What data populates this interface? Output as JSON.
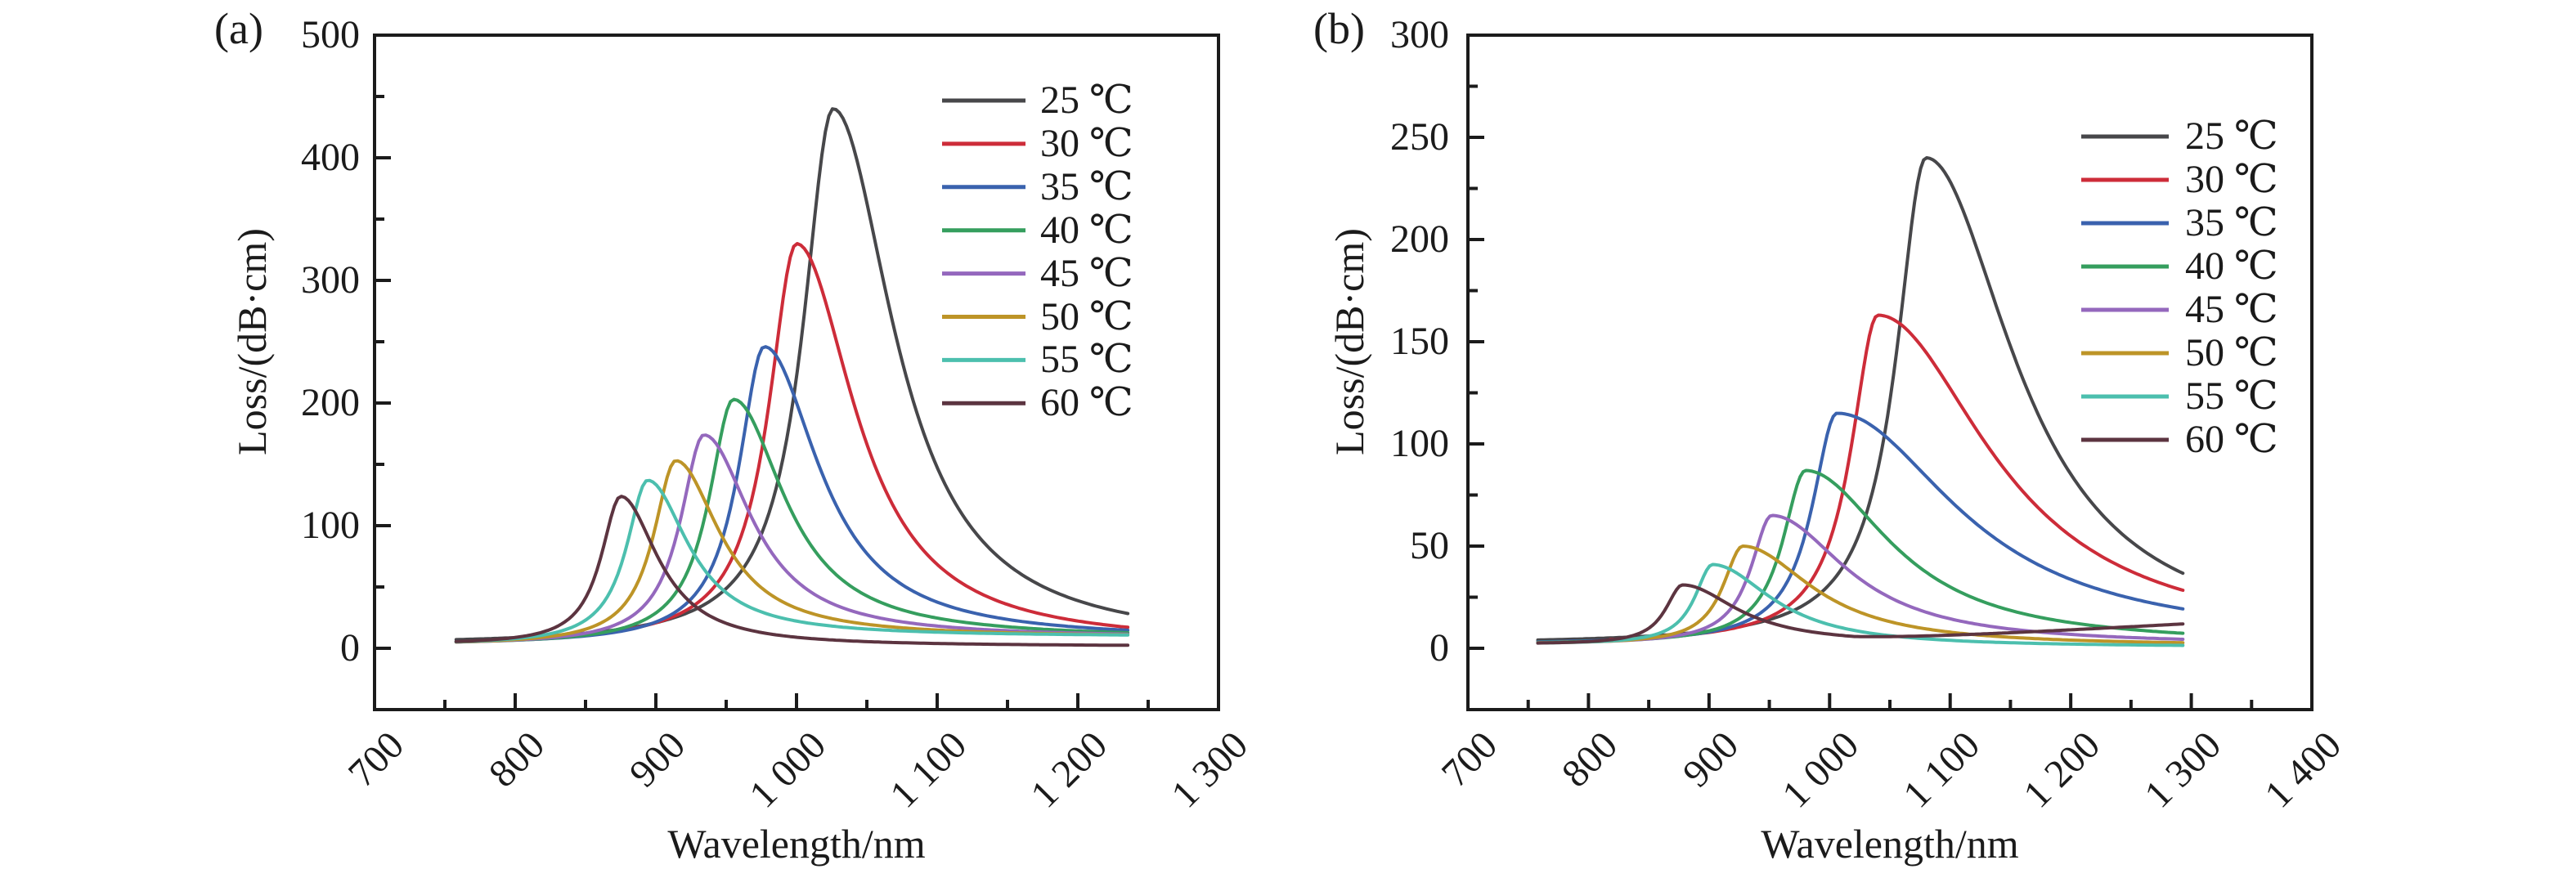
{
  "figure": {
    "background_color": "#ffffff",
    "axis_color": "#1b1b1b",
    "temperature_unit": "℃"
  },
  "chart_data": {
    "type": "line",
    "description": "Loss spectra versus wavelength at temperatures 25-60 ℃, two panels",
    "panels": [
      {
        "panel_label": "(a)",
        "x_label": "Wavelength/nm",
        "y_label": "Loss/(dB·cm)",
        "x_range": [
          700,
          1300
        ],
        "y_range": [
          -50,
          500
        ],
        "x_minor_step": 50,
        "y_minor_step": 50,
        "grid": false,
        "legend_position": "upper-right-inside",
        "x_ticks": [
          {
            "value": 700,
            "label": "700"
          },
          {
            "value": 800,
            "label": "800"
          },
          {
            "value": 900,
            "label": "900"
          },
          {
            "value": 1000,
            "label": "1 000"
          },
          {
            "value": 1100,
            "label": "1 100"
          },
          {
            "value": 1200,
            "label": "1 200"
          },
          {
            "value": 1300,
            "label": "1 300"
          }
        ],
        "y_ticks": [
          {
            "value": 0,
            "label": "0"
          },
          {
            "value": 100,
            "label": "100"
          },
          {
            "value": 200,
            "label": "200"
          },
          {
            "value": 300,
            "label": "300"
          },
          {
            "value": 400,
            "label": "400"
          },
          {
            "value": 500,
            "label": "500"
          }
        ],
        "series": [
          {
            "label": "25 ℃",
            "temperature_c": 25,
            "color": "#47474a",
            "peak": {
              "wavelength_nm": 1026,
              "loss_db_cm": 440
            },
            "lorentz": {
              "width_left_nm": 26,
              "width_right_nm": 52
            },
            "baseline": {
              "left": 3,
              "right": 3
            },
            "x_start": 758,
            "x_end": 1236
          },
          {
            "label": "30 ℃",
            "temperature_c": 30,
            "color": "#cd2c39",
            "peak": {
              "wavelength_nm": 1000,
              "loss_db_cm": 330
            },
            "lorentz": {
              "width_left_nm": 24,
              "width_right_nm": 50
            },
            "baseline": {
              "left": 3,
              "right": 3
            },
            "x_start": 818,
            "x_end": 1236
          },
          {
            "label": "35 ℃",
            "temperature_c": 35,
            "color": "#3a62ae",
            "peak": {
              "wavelength_nm": 977,
              "loss_db_cm": 246
            },
            "lorentz": {
              "width_left_nm": 22,
              "width_right_nm": 47
            },
            "baseline": {
              "left": 3,
              "right": 7
            },
            "x_start": 758,
            "x_end": 1236
          },
          {
            "label": "40 ℃",
            "temperature_c": 40,
            "color": "#359e5e",
            "peak": {
              "wavelength_nm": 955,
              "loss_db_cm": 203
            },
            "lorentz": {
              "width_left_nm": 21,
              "width_right_nm": 44
            },
            "baseline": {
              "left": 3,
              "right": 8
            },
            "x_start": 758,
            "x_end": 1236
          },
          {
            "label": "45 ℃",
            "temperature_c": 45,
            "color": "#9468bd",
            "peak": {
              "wavelength_nm": 934,
              "loss_db_cm": 174
            },
            "lorentz": {
              "width_left_nm": 20,
              "width_right_nm": 41
            },
            "baseline": {
              "left": 3,
              "right": 8.5
            },
            "x_start": 758,
            "x_end": 1236
          },
          {
            "label": "50 ℃",
            "temperature_c": 50,
            "color": "#bd9427",
            "peak": {
              "wavelength_nm": 914,
              "loss_db_cm": 153
            },
            "lorentz": {
              "width_left_nm": 19,
              "width_right_nm": 38
            },
            "baseline": {
              "left": 3,
              "right": 9
            },
            "x_start": 758,
            "x_end": 1236
          },
          {
            "label": "55 ℃",
            "temperature_c": 55,
            "color": "#4cbfae",
            "peak": {
              "wavelength_nm": 894,
              "loss_db_cm": 137
            },
            "lorentz": {
              "width_left_nm": 18,
              "width_right_nm": 35
            },
            "baseline": {
              "left": 3,
              "right": 9.5
            },
            "x_start": 758,
            "x_end": 1236
          },
          {
            "label": "60 ℃",
            "temperature_c": 60,
            "color": "#5c3440",
            "peak": {
              "wavelength_nm": 875,
              "loss_db_cm": 124
            },
            "lorentz": {
              "width_left_nm": 17,
              "width_right_nm": 32
            },
            "baseline": {
              "left": 3,
              "right": 1.5
            },
            "x_start": 758,
            "x_end": 1236
          }
        ]
      },
      {
        "panel_label": "(b)",
        "x_label": "Wavelength/nm",
        "y_label": "Loss/(dB·cm)",
        "x_range": [
          700,
          1400
        ],
        "y_range": [
          -30,
          300
        ],
        "x_minor_step": 50,
        "y_minor_step": 25,
        "grid": false,
        "legend_position": "upper-right-inside",
        "x_ticks": [
          {
            "value": 700,
            "label": "700"
          },
          {
            "value": 800,
            "label": "800"
          },
          {
            "value": 900,
            "label": "900"
          },
          {
            "value": 1000,
            "label": "1 000"
          },
          {
            "value": 1100,
            "label": "1 100"
          },
          {
            "value": 1200,
            "label": "1 200"
          },
          {
            "value": 1300,
            "label": "1 300"
          },
          {
            "value": 1400,
            "label": "1 400"
          }
        ],
        "y_ticks": [
          {
            "value": 0,
            "label": "0"
          },
          {
            "value": 50,
            "label": "50"
          },
          {
            "value": 100,
            "label": "100"
          },
          {
            "value": 150,
            "label": "150"
          },
          {
            "value": 200,
            "label": "200"
          },
          {
            "value": 250,
            "label": "250"
          },
          {
            "value": 300,
            "label": "300"
          }
        ],
        "series": [
          {
            "label": "25 ℃",
            "temperature_c": 25,
            "color": "#47474a",
            "peak": {
              "wavelength_nm": 1080,
              "loss_db_cm": 240
            },
            "lorentz": {
              "width_left_nm": 30,
              "width_right_nm": 88
            },
            "baseline": {
              "left": 2,
              "right": 2
            },
            "x_start": 758,
            "x_end": 1295
          },
          {
            "label": "30 ℃",
            "temperature_c": 30,
            "color": "#cd2c39",
            "peak": {
              "wavelength_nm": 1040,
              "loss_db_cm": 163
            },
            "lorentz": {
              "width_left_nm": 27,
              "width_right_nm": 112
            },
            "baseline": {
              "left": 2,
              "right": 2
            },
            "x_start": 818,
            "x_end": 1295
          },
          {
            "label": "35 ℃",
            "temperature_c": 35,
            "color": "#3a62ae",
            "peak": {
              "wavelength_nm": 1006,
              "loss_db_cm": 115
            },
            "lorentz": {
              "width_left_nm": 25,
              "width_right_nm": 120
            },
            "baseline": {
              "left": 2,
              "right": 2.5
            },
            "x_start": 758,
            "x_end": 1295
          },
          {
            "label": "40 ℃",
            "temperature_c": 40,
            "color": "#359e5e",
            "peak": {
              "wavelength_nm": 980,
              "loss_db_cm": 87
            },
            "lorentz": {
              "width_left_nm": 23,
              "width_right_nm": 85
            },
            "baseline": {
              "left": 2,
              "right": 1.5
            },
            "x_start": 758,
            "x_end": 1295
          },
          {
            "label": "45 ℃",
            "temperature_c": 45,
            "color": "#9468bd",
            "peak": {
              "wavelength_nm": 952,
              "loss_db_cm": 65
            },
            "lorentz": {
              "width_left_nm": 21,
              "width_right_nm": 75
            },
            "baseline": {
              "left": 2,
              "right": 1.5
            },
            "x_start": 758,
            "x_end": 1295
          },
          {
            "label": "50 ℃",
            "temperature_c": 50,
            "color": "#bd9427",
            "peak": {
              "wavelength_nm": 928,
              "loss_db_cm": 50
            },
            "lorentz": {
              "width_left_nm": 20,
              "width_right_nm": 70
            },
            "baseline": {
              "left": 2,
              "right": 1
            },
            "x_start": 758,
            "x_end": 1295
          },
          {
            "label": "55 ℃",
            "temperature_c": 55,
            "color": "#4cbfae",
            "peak": {
              "wavelength_nm": 903,
              "loss_db_cm": 41
            },
            "lorentz": {
              "width_left_nm": 18,
              "width_right_nm": 60
            },
            "baseline": {
              "left": 2,
              "right": 0.5
            },
            "x_start": 758,
            "x_end": 1295
          },
          {
            "label": "60 ℃",
            "temperature_c": 60,
            "color": "#5c3440",
            "peak": {
              "wavelength_nm": 878,
              "loss_db_cm": 31
            },
            "lorentz": {
              "width_left_nm": 17,
              "width_right_nm": 55
            },
            "baseline": {
              "left": 2,
              "right": 2
            },
            "tail_rise": {
              "from_nm": 1020,
              "to_nm": 1295,
              "value": 9.5
            },
            "x_start": 758,
            "x_end": 1295
          }
        ]
      }
    ]
  }
}
